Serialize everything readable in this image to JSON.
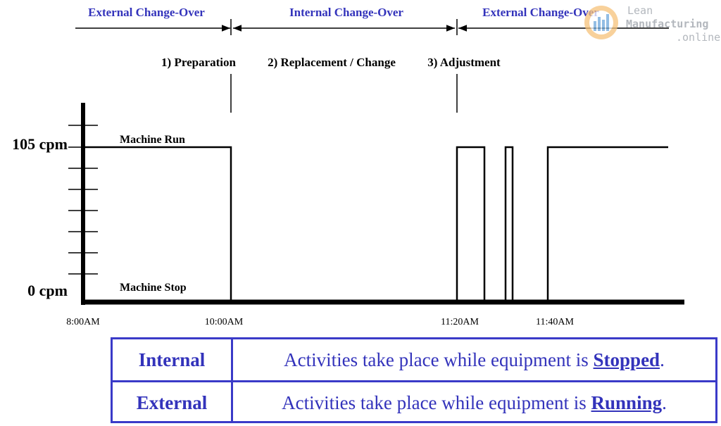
{
  "phases": {
    "external_1": "External Change-Over",
    "internal": "Internal Change-Over",
    "external_2": "External Change-Over"
  },
  "steps": {
    "preparation": "1) Preparation",
    "replacement": "2) Replacement / Change",
    "adjustment": "3) Adjustment"
  },
  "y_axis": {
    "top": "105 cpm",
    "bottom": "0 cpm"
  },
  "states": {
    "run": "Machine Run",
    "stop": "Machine Stop"
  },
  "times": {
    "t0": "8:00AM",
    "t1": "10:00AM",
    "t2": "11:20AM",
    "t3": "11:40AM"
  },
  "logo": {
    "line1": "Lean",
    "line2": "Manufacturing",
    "line3": ".online"
  },
  "definitions": [
    {
      "term": "Internal",
      "text_before": "Activities take place while equipment is ",
      "keyword": "Stopped",
      "text_after": "."
    },
    {
      "term": "External",
      "text_before": "Activities take place while equipment is ",
      "keyword": "Running",
      "text_after": "."
    }
  ],
  "colors": {
    "accent_blue": "#3333bb",
    "table_border": "#3a3ac8",
    "line": "#000000"
  }
}
